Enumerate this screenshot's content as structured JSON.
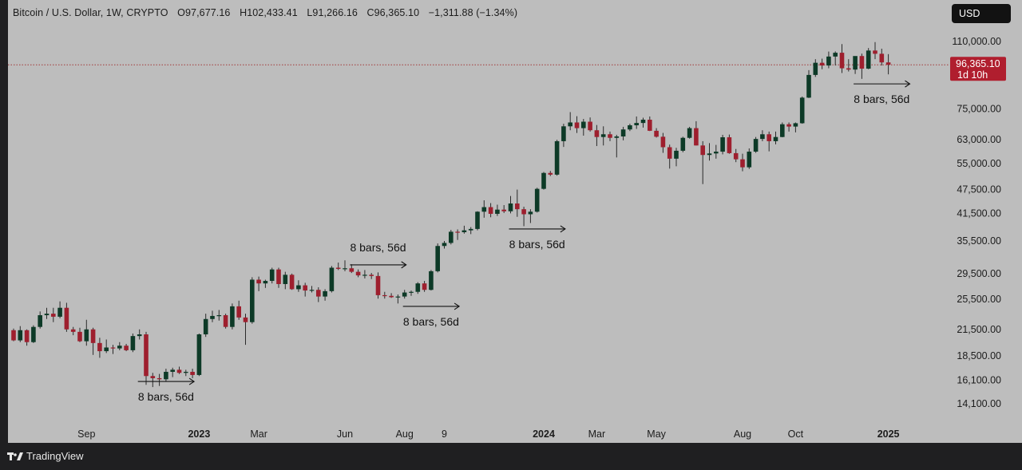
{
  "header": {
    "symbol": "Bitcoin / U.S. Dollar, 1W, CRYPTO",
    "open": "O97,677.16",
    "high": "H102,433.41",
    "low": "L91,266.16",
    "close": "C96,365.10",
    "change": "−1,311.88 (−1.34%)",
    "currency": "USD"
  },
  "footer": {
    "brand": "TradingView"
  },
  "colors": {
    "up": "#0d3a27",
    "down": "#9e1f2e",
    "background": "#bdbdbd",
    "price_line": "#a33a3a"
  },
  "chart_data": {
    "type": "candlestick",
    "title": "Bitcoin / U.S. Dollar, 1W, CRYPTO",
    "scale": "log",
    "ylim": [
      13000,
      120000
    ],
    "y_ticks": [
      {
        "value": 110000,
        "label": "110,000.00"
      },
      {
        "value": 75000,
        "label": "75,000.00"
      },
      {
        "value": 63000,
        "label": "63,000.00"
      },
      {
        "value": 55000,
        "label": "55,000.00"
      },
      {
        "value": 47500,
        "label": "47,500.00"
      },
      {
        "value": 41500,
        "label": "41,500.00"
      },
      {
        "value": 35500,
        "label": "35,500.00"
      },
      {
        "value": 29500,
        "label": "29,500.00"
      },
      {
        "value": 25500,
        "label": "25,500.00"
      },
      {
        "value": 21500,
        "label": "21,500.00"
      },
      {
        "value": 18500,
        "label": "18,500.00"
      },
      {
        "value": 16100,
        "label": "16,100.00"
      },
      {
        "value": 14100,
        "label": "14,100.00"
      }
    ],
    "x_ticks": [
      {
        "index": 11,
        "label": "Sep",
        "bold": false
      },
      {
        "index": 28,
        "label": "2023",
        "bold": true
      },
      {
        "index": 37,
        "label": "Mar",
        "bold": false
      },
      {
        "index": 50,
        "label": "Jun",
        "bold": false
      },
      {
        "index": 59,
        "label": "Aug",
        "bold": false
      },
      {
        "index": 65,
        "label": "9",
        "bold": false
      },
      {
        "index": 80,
        "label": "2024",
        "bold": true
      },
      {
        "index": 88,
        "label": "Mar",
        "bold": false
      },
      {
        "index": 97,
        "label": "May",
        "bold": false
      },
      {
        "index": 110,
        "label": "Aug",
        "bold": false
      },
      {
        "index": 118,
        "label": "Oct",
        "bold": false
      },
      {
        "index": 132,
        "label": "2025",
        "bold": true
      }
    ],
    "current_price": {
      "value": 96365.1,
      "label": "96,365.10",
      "countdown": "1d 10h"
    },
    "annotations": [
      {
        "label": "8 bars, 56d",
        "start": 19,
        "end": 27,
        "level": 16000,
        "text_below": true
      },
      {
        "label": "8 bars, 56d",
        "start": 51,
        "end": 59,
        "level": 31000,
        "text_below": false
      },
      {
        "label": "8 bars, 56d",
        "start": 59,
        "end": 67,
        "level": 24500,
        "text_below": true
      },
      {
        "label": "8 bars, 56d",
        "start": 75,
        "end": 83,
        "level": 38000,
        "text_below": true
      },
      {
        "label": "8 bars, 56d",
        "start": 127,
        "end": 135,
        "level": 86500,
        "text_below": true
      }
    ],
    "candles": [
      [
        21400,
        21600,
        20100,
        20200
      ],
      [
        20200,
        21900,
        20000,
        21400
      ],
      [
        21400,
        21500,
        19600,
        20000
      ],
      [
        20000,
        22000,
        19900,
        21800
      ],
      [
        21800,
        23800,
        21600,
        23300
      ],
      [
        23300,
        24300,
        22800,
        23500
      ],
      [
        23500,
        24300,
        22400,
        23100
      ],
      [
        23100,
        25200,
        22900,
        24300
      ],
      [
        24300,
        25000,
        21200,
        21500
      ],
      [
        21500,
        21800,
        20800,
        21200
      ],
      [
        21200,
        21700,
        20000,
        20100
      ],
      [
        20100,
        22700,
        19600,
        21500
      ],
      [
        21500,
        21700,
        18600,
        19900
      ],
      [
        19900,
        20500,
        18300,
        19000
      ],
      [
        19000,
        20300,
        18800,
        19400
      ],
      [
        19400,
        19700,
        18700,
        19300
      ],
      [
        19300,
        20000,
        19100,
        19600
      ],
      [
        19600,
        19800,
        19000,
        19100
      ],
      [
        19100,
        21000,
        18900,
        20700
      ],
      [
        20700,
        21500,
        20300,
        20900
      ],
      [
        20900,
        21200,
        15700,
        16500
      ],
      [
        16500,
        16800,
        15500,
        16300
      ],
      [
        16300,
        16700,
        15600,
        16200
      ],
      [
        16200,
        17200,
        16000,
        16900
      ],
      [
        16900,
        17300,
        16400,
        17100
      ],
      [
        17100,
        17400,
        16700,
        16800
      ],
      [
        16800,
        17100,
        16500,
        16900
      ],
      [
        16900,
        17200,
        16300,
        16600
      ],
      [
        16600,
        21000,
        16500,
        20900
      ],
      [
        20900,
        23500,
        20600,
        22800
      ],
      [
        22800,
        23900,
        22400,
        23200
      ],
      [
        23200,
        24000,
        22600,
        23300
      ],
      [
        23300,
        23500,
        21600,
        21800
      ],
      [
        21800,
        24900,
        21500,
        24500
      ],
      [
        24500,
        25300,
        22700,
        23000
      ],
      [
        23000,
        23500,
        19700,
        22400
      ],
      [
        22400,
        28900,
        22200,
        28500
      ],
      [
        28500,
        29000,
        26700,
        27900
      ],
      [
        27900,
        28500,
        27200,
        28300
      ],
      [
        28300,
        30500,
        27900,
        30200
      ],
      [
        30200,
        30500,
        27200,
        27800
      ],
      [
        27800,
        29800,
        27000,
        29300
      ],
      [
        29300,
        29500,
        26900,
        27000
      ],
      [
        27000,
        28400,
        26600,
        27600
      ],
      [
        27600,
        28000,
        25900,
        26800
      ],
      [
        26800,
        27500,
        26500,
        26900
      ],
      [
        26900,
        27300,
        25100,
        25900
      ],
      [
        25900,
        27000,
        25300,
        26700
      ],
      [
        26700,
        30800,
        26500,
        30500
      ],
      [
        30500,
        31400,
        30100,
        30300
      ],
      [
        30300,
        31800,
        29900,
        30400
      ],
      [
        30400,
        31100,
        29600,
        29800
      ],
      [
        29800,
        30200,
        28900,
        29200
      ],
      [
        29200,
        30100,
        28700,
        29300
      ],
      [
        29300,
        29600,
        28600,
        29100
      ],
      [
        29100,
        29700,
        25600,
        26100
      ],
      [
        26100,
        26600,
        25600,
        26000
      ],
      [
        26000,
        26400,
        25700,
        25800
      ],
      [
        25800,
        26200,
        24900,
        25900
      ],
      [
        25900,
        26900,
        25600,
        26500
      ],
      [
        26500,
        26800,
        26000,
        26600
      ],
      [
        26600,
        28100,
        26300,
        27900
      ],
      [
        27900,
        28300,
        26600,
        26900
      ],
      [
        26900,
        30100,
        26800,
        29900
      ],
      [
        29900,
        35000,
        29700,
        34500
      ],
      [
        34500,
        35500,
        34000,
        35100
      ],
      [
        35100,
        37800,
        34800,
        37400
      ],
      [
        37400,
        37900,
        35700,
        37300
      ],
      [
        37300,
        38700,
        37000,
        37700
      ],
      [
        37700,
        38400,
        36900,
        38000
      ],
      [
        38000,
        42000,
        37700,
        41900
      ],
      [
        41900,
        44700,
        40500,
        43000
      ],
      [
        43000,
        44000,
        40600,
        41400
      ],
      [
        41400,
        43600,
        40900,
        42400
      ],
      [
        42400,
        43500,
        41600,
        42000
      ],
      [
        42000,
        45800,
        41500,
        43900
      ],
      [
        43900,
        47500,
        40700,
        42500
      ],
      [
        42500,
        43100,
        38600,
        41300
      ],
      [
        41300,
        42500,
        39300,
        41900
      ],
      [
        41900,
        48000,
        41700,
        47700
      ],
      [
        47700,
        52500,
        47500,
        52200
      ],
      [
        52200,
        52800,
        51300,
        51700
      ],
      [
        51700,
        63000,
        51400,
        62500
      ],
      [
        62500,
        69000,
        60500,
        68000
      ],
      [
        68000,
        73700,
        66500,
        69500
      ],
      [
        69500,
        72000,
        65500,
        67300
      ],
      [
        67300,
        70900,
        64500,
        69800
      ],
      [
        69800,
        71500,
        66000,
        66500
      ],
      [
        66500,
        68500,
        60800,
        64000
      ],
      [
        64000,
        68000,
        61000,
        65000
      ],
      [
        65000,
        66000,
        62500,
        63700
      ],
      [
        63700,
        64800,
        57000,
        64200
      ],
      [
        64200,
        67800,
        62800,
        66800
      ],
      [
        66800,
        69000,
        66200,
        68400
      ],
      [
        68400,
        71900,
        67000,
        69300
      ],
      [
        69300,
        71400,
        67500,
        70600
      ],
      [
        70600,
        71900,
        66200,
        66300
      ],
      [
        66300,
        67300,
        63800,
        64100
      ],
      [
        64100,
        65500,
        58500,
        60400
      ],
      [
        60400,
        61300,
        53500,
        56600
      ],
      [
        56600,
        60200,
        54200,
        59200
      ],
      [
        59200,
        64100,
        58700,
        63700
      ],
      [
        63700,
        67800,
        63400,
        67300
      ],
      [
        67300,
        70000,
        61000,
        61000
      ],
      [
        61000,
        62500,
        49000,
        57800
      ],
      [
        57800,
        61800,
        56000,
        58300
      ],
      [
        58300,
        61200,
        56600,
        58900
      ],
      [
        58900,
        64800,
        58000,
        63900
      ],
      [
        63900,
        64900,
        58200,
        58400
      ],
      [
        58400,
        59800,
        55500,
        56400
      ],
      [
        56400,
        58200,
        52700,
        53900
      ],
      [
        53900,
        60000,
        53400,
        58900
      ],
      [
        58900,
        64000,
        58500,
        63300
      ],
      [
        63300,
        66500,
        62500,
        65000
      ],
      [
        65000,
        66000,
        59000,
        62500
      ],
      [
        62500,
        66000,
        61400,
        64000
      ],
      [
        64000,
        69500,
        63900,
        68800
      ],
      [
        68800,
        69500,
        66000,
        67900
      ],
      [
        67900,
        69500,
        65700,
        69200
      ],
      [
        69200,
        80500,
        69000,
        80000
      ],
      [
        80000,
        93500,
        79800,
        91000
      ],
      [
        91000,
        99500,
        90000,
        97500
      ],
      [
        97500,
        99800,
        94000,
        96000
      ],
      [
        96000,
        103900,
        94500,
        101000
      ],
      [
        101000,
        104000,
        96000,
        103200
      ],
      [
        103200,
        108400,
        92000,
        94500
      ],
      [
        94500,
        99500,
        92800,
        93800
      ],
      [
        93800,
        101000,
        91500,
        101300
      ],
      [
        101300,
        102700,
        89000,
        94300
      ],
      [
        94300,
        106000,
        94000,
        104500
      ],
      [
        104500,
        109600,
        99500,
        102600
      ],
      [
        102600,
        105600,
        96000,
        97700
      ],
      [
        97700,
        102400,
        91300,
        96400
      ]
    ]
  }
}
